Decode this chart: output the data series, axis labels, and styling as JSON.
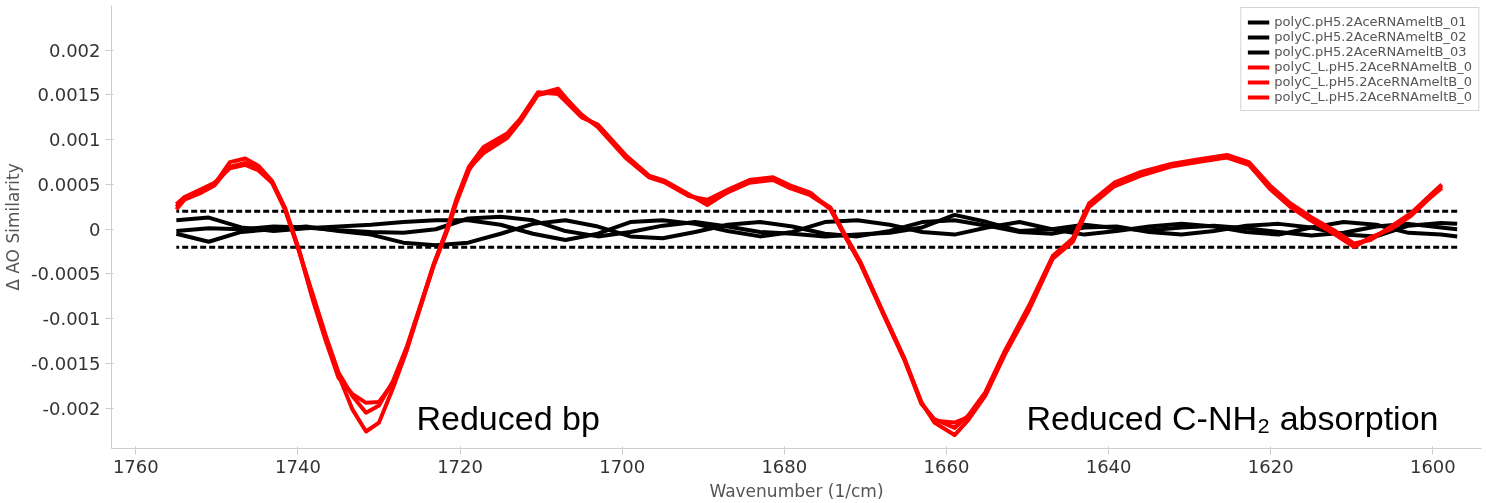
{
  "chart_data": {
    "type": "line",
    "xlabel": "Wavenumber (1/cm)",
    "ylabel": "Δ AO Similarity",
    "xlim": [
      1763,
      1594
    ],
    "ylim": [
      -0.00245,
      0.0025
    ],
    "xticks": [
      1760,
      1740,
      1720,
      1700,
      1680,
      1660,
      1640,
      1620,
      1600
    ],
    "yticks": [
      -0.002,
      -0.0015,
      -0.001,
      -0.0005,
      0,
      0.0005,
      0.001,
      0.0015,
      0.002
    ],
    "grid": false,
    "legend": "top right",
    "line_style": "solid",
    "marker": "none",
    "ref_lines": [
      {
        "axis": "y",
        "value": 0.0002,
        "color": "#000000",
        "line_style": "dashed"
      },
      {
        "axis": "y",
        "value": -0.0002,
        "color": "#000000",
        "line_style": "dashed"
      }
    ],
    "annotations": [
      "Reduced bp",
      "Reduced C-NH₂ absorption"
    ],
    "series": [
      {
        "name": "polyC.pH5.2AceRNAmeltB_01",
        "color": "#000000",
        "x": [
          1755,
          1751,
          1747,
          1743,
          1739,
          1735,
          1731,
          1727,
          1723,
          1719,
          1715,
          1711,
          1707,
          1703,
          1699,
          1695,
          1691,
          1687,
          1683,
          1679,
          1675,
          1671,
          1667,
          1663,
          1659,
          1655,
          1651,
          1647,
          1643,
          1639,
          1635,
          1631,
          1627,
          1623,
          1619,
          1615,
          1611,
          1607,
          1603,
          1599,
          1597
        ],
        "values": [
          0.0001,
          0.00013,
          2e-05,
          -2e-05,
          1e-05,
          3e-05,
          5e-05,
          8e-05,
          0.0001,
          0.0001,
          5e-05,
          -5e-05,
          -0.00012,
          -5e-05,
          8e-05,
          0.0001,
          6e-05,
          -2e-05,
          -8e-05,
          -3e-05,
          8e-05,
          0.0001,
          5e-05,
          -3e-05,
          -6e-05,
          2e-05,
          8e-05,
          0.0,
          -6e-05,
          -2e-05,
          3e-05,
          6e-05,
          3e-05,
          -3e-05,
          -6e-05,
          2e-05,
          8e-05,
          5e-05,
          -4e-05,
          -6e-05,
          -8e-05
        ]
      },
      {
        "name": "polyC.pH5.2AceRNAmeltB_02",
        "color": "#000000",
        "x": [
          1755,
          1751,
          1747,
          1743,
          1739,
          1735,
          1731,
          1727,
          1723,
          1719,
          1715,
          1711,
          1707,
          1703,
          1699,
          1695,
          1691,
          1687,
          1683,
          1679,
          1675,
          1671,
          1667,
          1663,
          1659,
          1655,
          1651,
          1647,
          1643,
          1639,
          1635,
          1631,
          1627,
          1623,
          1619,
          1615,
          1611,
          1607,
          1603,
          1599,
          1597
        ],
        "values": [
          -5e-05,
          -0.00014,
          -3e-05,
          0.0,
          3e-05,
          -2e-05,
          -6e-05,
          -0.00015,
          -0.00018,
          -0.00015,
          -5e-05,
          6e-05,
          0.0001,
          3e-05,
          -8e-05,
          -0.0001,
          -3e-05,
          5e-05,
          8e-05,
          3e-05,
          -5e-05,
          -8e-05,
          -2e-05,
          8e-05,
          0.0001,
          4e-05,
          -3e-05,
          -5e-05,
          2e-05,
          3e-05,
          -3e-05,
          -6e-05,
          -2e-05,
          4e-05,
          6e-05,
          2e-05,
          -6e-05,
          -8e-05,
          4e-05,
          7e-05,
          6e-05
        ]
      },
      {
        "name": "polyC.pH5.2AceRNAmeltB_03",
        "color": "#000000",
        "x": [
          1755,
          1751,
          1747,
          1743,
          1739,
          1735,
          1731,
          1727,
          1723,
          1719,
          1715,
          1711,
          1707,
          1703,
          1699,
          1695,
          1691,
          1687,
          1683,
          1679,
          1675,
          1671,
          1667,
          1663,
          1659,
          1655,
          1651,
          1647,
          1643,
          1639,
          1635,
          1631,
          1627,
          1623,
          1619,
          1615,
          1611,
          1607,
          1603,
          1599,
          1597
        ],
        "values": [
          -2e-05,
          1e-05,
          0.0,
          3e-05,
          2e-05,
          -1e-05,
          -3e-05,
          -4e-05,
          0.0,
          0.00012,
          0.00014,
          0.0001,
          -2e-05,
          -8e-05,
          -3e-05,
          4e-05,
          8e-05,
          3e-05,
          -3e-05,
          -5e-05,
          -8e-05,
          -6e-05,
          -4e-05,
          2e-05,
          0.00016,
          8e-05,
          -2e-05,
          0.0,
          5e-05,
          1e-05,
          -1e-05,
          2e-05,
          4e-05,
          1e-05,
          -3e-05,
          -7e-05,
          -4e-05,
          3e-05,
          6e-05,
          2e-05,
          0.0
        ]
      },
      {
        "name": "polyC_L.pH5.2AceRNAmeltB_0",
        "color": "#ff0000",
        "x": [
          1755,
          1754,
          1751.9,
          1750.3,
          1748.4,
          1746.5,
          1744.9,
          1743.2,
          1741.6,
          1739.9,
          1738.2,
          1736.6,
          1735,
          1733.3,
          1731.6,
          1730,
          1728.3,
          1726.6,
          1725,
          1723.3,
          1721.6,
          1720.4,
          1718.9,
          1717.1,
          1714.2,
          1712.6,
          1710.4,
          1707.9,
          1705,
          1703,
          1699.6,
          1696.7,
          1694.7,
          1691.8,
          1689.5,
          1686.8,
          1684.3,
          1681.4,
          1679.3,
          1676.8,
          1674.3,
          1672.7,
          1670.6,
          1667.7,
          1665.2,
          1663.1,
          1661.5,
          1659,
          1657.3,
          1655.2,
          1652.8,
          1649.8,
          1646.9,
          1644.4,
          1642.4,
          1639.3,
          1636,
          1632.3,
          1629,
          1625.4,
          1622.7,
          1620.1,
          1617.6,
          1615.1,
          1612.2,
          1609.7,
          1607.7,
          1605.2,
          1602.7,
          1600.1,
          1598.9
        ],
        "values": [
          0.00025,
          0.00035,
          0.00043,
          0.0005,
          0.00075,
          0.00079,
          0.00071,
          0.00054,
          0.00024,
          -0.00022,
          -0.00075,
          -0.00121,
          -0.00163,
          -0.00201,
          -0.00226,
          -0.00216,
          -0.00178,
          -0.00136,
          -0.0009,
          -0.00041,
          1e-05,
          0.00035,
          0.0007,
          0.00092,
          0.00107,
          0.00123,
          0.00153,
          0.00151,
          0.00125,
          0.00117,
          0.00083,
          0.0006,
          0.00054,
          0.00039,
          0.00027,
          0.00043,
          0.00053,
          0.00056,
          0.00047,
          0.00039,
          0.00024,
          -3e-05,
          -0.00037,
          -0.00095,
          -0.00144,
          -0.00193,
          -0.00216,
          -0.0023,
          -0.00213,
          -0.00186,
          -0.0014,
          -0.0009,
          -0.00033,
          -0.00014,
          0.00027,
          0.0005,
          0.00062,
          0.00071,
          0.00076,
          0.00081,
          0.00073,
          0.00047,
          0.00027,
          0.00012,
          -3e-05,
          -0.00018,
          -0.0001,
          1e-05,
          0.00016,
          0.00039,
          0.00048
        ]
      },
      {
        "name": "polyC_L.pH5.2AceRNAmeltB_0",
        "color": "#ff0000",
        "x": [
          1755,
          1754,
          1751.9,
          1750.3,
          1748.4,
          1746.5,
          1744.9,
          1743.2,
          1741.6,
          1739.9,
          1738.2,
          1736.6,
          1735,
          1733.3,
          1731.6,
          1730,
          1728.3,
          1726.6,
          1725,
          1723.3,
          1721.6,
          1720.4,
          1718.9,
          1717.1,
          1714.2,
          1712.6,
          1710.4,
          1707.9,
          1705,
          1703,
          1699.6,
          1696.7,
          1694.7,
          1691.8,
          1689.5,
          1686.8,
          1684.3,
          1681.4,
          1679.3,
          1676.8,
          1674.3,
          1672.7,
          1670.6,
          1667.7,
          1665.2,
          1663.1,
          1661.5,
          1659,
          1657.3,
          1655.2,
          1652.8,
          1649.8,
          1646.9,
          1644.4,
          1642.4,
          1639.3,
          1636,
          1632.3,
          1629,
          1625.4,
          1622.7,
          1620.1,
          1617.6,
          1615.1,
          1612.2,
          1609.7,
          1607.7,
          1605.2,
          1602.7,
          1600.1,
          1598.9
        ],
        "values": [
          0.00028,
          0.00036,
          0.00045,
          0.00052,
          0.00068,
          0.00072,
          0.00066,
          0.00052,
          0.00022,
          -0.00024,
          -0.00072,
          -0.00118,
          -0.0016,
          -0.00186,
          -0.00205,
          -0.00197,
          -0.0017,
          -0.00132,
          -0.00088,
          -0.0004,
          0.0,
          0.00033,
          0.00068,
          0.00085,
          0.00102,
          0.0012,
          0.0015,
          0.00155,
          0.00128,
          0.00114,
          0.0008,
          0.00058,
          0.00052,
          0.00037,
          0.00033,
          0.00045,
          0.00055,
          0.00058,
          0.00049,
          0.00041,
          0.00022,
          -5e-05,
          -0.00039,
          -0.00097,
          -0.00146,
          -0.00195,
          -0.00212,
          -0.00222,
          -0.00208,
          -0.00182,
          -0.00136,
          -0.00085,
          -0.0003,
          -0.0001,
          0.00029,
          0.00052,
          0.00064,
          0.00073,
          0.00078,
          0.00083,
          0.00075,
          0.00049,
          0.00029,
          0.00014,
          -1e-05,
          -0.00016,
          -0.00012,
          3e-05,
          0.00018,
          0.0004,
          0.0005
        ]
      },
      {
        "name": "polyC_L.pH5.2AceRNAmeltB_0",
        "color": "#ff0000",
        "x": [
          1755,
          1754,
          1751.9,
          1750.3,
          1748.4,
          1746.5,
          1744.9,
          1743.2,
          1741.6,
          1739.9,
          1738.2,
          1736.6,
          1735,
          1733.3,
          1731.6,
          1730,
          1728.3,
          1726.6,
          1725,
          1723.3,
          1721.6,
          1720.4,
          1718.9,
          1717.1,
          1714.2,
          1712.6,
          1710.4,
          1707.9,
          1705,
          1703,
          1699.6,
          1696.7,
          1694.7,
          1691.8,
          1689.5,
          1686.8,
          1684.3,
          1681.4,
          1679.3,
          1676.8,
          1674.3,
          1672.7,
          1670.6,
          1667.7,
          1665.2,
          1663.1,
          1661.5,
          1659,
          1657.3,
          1655.2,
          1652.8,
          1649.8,
          1646.9,
          1644.4,
          1642.4,
          1639.3,
          1636,
          1632.3,
          1629,
          1625.4,
          1622.7,
          1620.1,
          1617.6,
          1615.1,
          1612.2,
          1609.7,
          1607.7,
          1605.2,
          1602.7,
          1600.1,
          1598.9
        ],
        "values": [
          0.00022,
          0.00033,
          0.00041,
          0.00049,
          0.0007,
          0.00074,
          0.00068,
          0.00053,
          0.00023,
          -0.00023,
          -0.00078,
          -0.00124,
          -0.00166,
          -0.00184,
          -0.00194,
          -0.00193,
          -0.00172,
          -0.00134,
          -0.00089,
          -0.00042,
          -2e-05,
          0.00031,
          0.00066,
          0.0009,
          0.00105,
          0.00122,
          0.00151,
          0.00157,
          0.00126,
          0.00116,
          0.00081,
          0.00059,
          0.00053,
          0.00038,
          0.0003,
          0.00042,
          0.00052,
          0.00055,
          0.00046,
          0.00038,
          0.00023,
          -4e-05,
          -0.00038,
          -0.00096,
          -0.00145,
          -0.00194,
          -0.00214,
          -0.00216,
          -0.0021,
          -0.00184,
          -0.00138,
          -0.00088,
          -0.00032,
          -0.00012,
          0.00025,
          0.00048,
          0.0006,
          0.0007,
          0.00075,
          0.0008,
          0.00072,
          0.00045,
          0.00025,
          0.0001,
          -5e-05,
          -0.0002,
          -9e-05,
          0.0,
          0.00015,
          0.00037,
          0.00046
        ]
      }
    ]
  }
}
